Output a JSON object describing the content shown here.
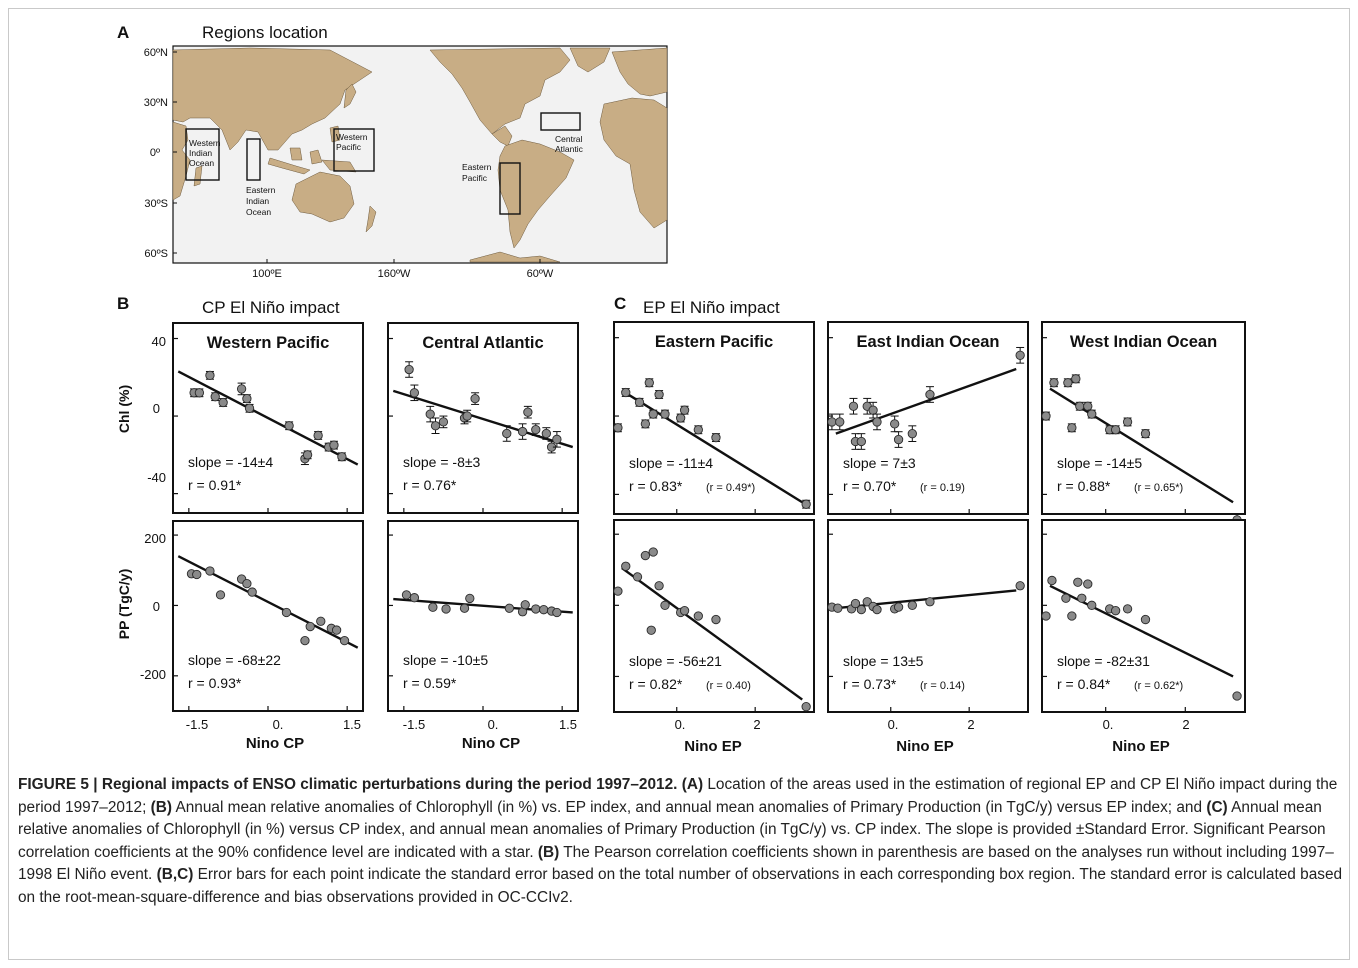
{
  "figure": {
    "panel_a": {
      "letter": "A",
      "title": "Regions location"
    },
    "panel_b": {
      "letter": "B",
      "title": "CP El Niño impact"
    },
    "panel_c": {
      "letter": "C",
      "title": "EP El Niño impact"
    }
  },
  "map": {
    "y_ticks": [
      "60ºN",
      "30ºN",
      "0º",
      "30ºS",
      "60ºS"
    ],
    "x_ticks": [
      "100ºE",
      "160ºW",
      "60ºW"
    ],
    "regions": [
      {
        "lines": [
          "Western",
          "Indian",
          "Ocean"
        ]
      },
      {
        "lines": [
          "Eastern",
          "Indian",
          "Ocean"
        ]
      },
      {
        "lines": [
          "Western",
          "Pacific"
        ]
      },
      {
        "lines": [
          "Eastern",
          "Pacific"
        ]
      },
      {
        "lines": [
          "Central",
          "Atlantic"
        ]
      }
    ],
    "colors": {
      "land": "#c8ad85",
      "ocean": "#f2f2f2",
      "box": "#111111"
    }
  },
  "axes": {
    "chl_label": "Chl (%)",
    "pp_label": "PP (TgC/y)",
    "chl_ticks": [
      "40",
      "0",
      "-40"
    ],
    "pp_ticks": [
      "200",
      "0",
      "-200"
    ],
    "cp_xlabel": "Nino CP",
    "ep_xlabel": "Nino EP",
    "cp_xticks": [
      "-1.5",
      "0.",
      "1.5"
    ],
    "ep_xticks": [
      "0.",
      "2"
    ]
  },
  "chart_data": [
    {
      "type": "scatter",
      "title": "Western Pacific",
      "xlabel": "",
      "ylabel": "Chl (%)",
      "xlim": [
        -1.8,
        1.8
      ],
      "ylim": [
        -50,
        48
      ],
      "slope": "slope = -14±4",
      "r": "r = 0.91*",
      "r_paren": "",
      "regression": [
        [
          -1.7,
          23
        ],
        [
          1.7,
          -25
        ]
      ],
      "x": [
        -1.4,
        -1.3,
        -1.1,
        -1.0,
        -0.85,
        -0.5,
        -0.4,
        -0.35,
        0.4,
        0.7,
        0.75,
        0.95,
        1.15,
        1.25,
        1.4
      ],
      "y": [
        12,
        12,
        21,
        10,
        7,
        14,
        9,
        4,
        -5,
        -22,
        -20,
        -10,
        -16,
        -15,
        -21
      ],
      "err": [
        2,
        2,
        2,
        2,
        2,
        3,
        2,
        2,
        2,
        3,
        2,
        2,
        2,
        2,
        2
      ]
    },
    {
      "type": "scatter",
      "title": "Central Atlantic",
      "xlabel": "",
      "ylabel": "",
      "xlim": [
        -1.8,
        1.8
      ],
      "ylim": [
        -50,
        48
      ],
      "slope": "slope = -8±3",
      "r": "r = 0.76*",
      "r_paren": "",
      "regression": [
        [
          -1.7,
          13
        ],
        [
          1.7,
          -16
        ]
      ],
      "x": [
        -1.4,
        -1.3,
        -1.0,
        -0.9,
        -0.75,
        -0.35,
        -0.3,
        -0.15,
        0.45,
        0.75,
        0.85,
        1.0,
        1.2,
        1.3,
        1.4
      ],
      "y": [
        24,
        12,
        1,
        -5,
        -3,
        -1,
        0,
        9,
        -9,
        -8,
        2,
        -7,
        -9,
        -16,
        -12
      ],
      "err": [
        4,
        4,
        4,
        4,
        3,
        3,
        3,
        3,
        4,
        4,
        3,
        3,
        3,
        3,
        4
      ]
    },
    {
      "type": "scatter",
      "title": "Eastern Pacific",
      "xlabel": "",
      "ylabel": "",
      "xlim": [
        -1.6,
        3.5
      ],
      "ylim": [
        -50,
        48
      ],
      "slope": "slope = -11±4",
      "r": "r = 0.83*",
      "r_paren": "(r = 0.49*)",
      "regression": [
        [
          -1.4,
          13
        ],
        [
          3.2,
          -44
        ]
      ],
      "x": [
        -1.5,
        -1.3,
        -0.95,
        -0.8,
        -0.7,
        -0.6,
        -0.45,
        -0.3,
        0.1,
        0.2,
        0.55,
        1.0,
        3.3
      ],
      "y": [
        -6,
        12,
        7,
        -4,
        17,
        1,
        11,
        1,
        -1,
        3,
        -7,
        -11,
        -45
      ],
      "err": [
        2,
        2,
        2,
        2,
        2,
        2,
        2,
        2,
        2,
        2,
        2,
        2,
        2
      ]
    },
    {
      "type": "scatter",
      "title": "East Indian Ocean",
      "xlabel": "",
      "ylabel": "",
      "xlim": [
        -1.6,
        3.5
      ],
      "ylim": [
        -50,
        48
      ],
      "slope": "slope = 7±3",
      "r": "r = 0.70*",
      "r_paren": "(r = 0.19)",
      "regression": [
        [
          -1.4,
          -9
        ],
        [
          3.2,
          24
        ]
      ],
      "x": [
        -1.5,
        -1.3,
        -0.95,
        -0.9,
        -0.75,
        -0.6,
        -0.45,
        -0.35,
        0.1,
        0.2,
        0.55,
        1.0,
        3.3
      ],
      "y": [
        -3,
        -3,
        5,
        -13,
        -13,
        5,
        3,
        -3,
        -4,
        -12,
        -9,
        11,
        31
      ],
      "err": [
        4,
        4,
        4,
        4,
        4,
        4,
        4,
        4,
        4,
        4,
        4,
        4,
        4
      ]
    },
    {
      "type": "scatter",
      "title": "West Indian Ocean",
      "xlabel": "",
      "ylabel": "",
      "xlim": [
        -1.6,
        3.5
      ],
      "ylim": [
        -50,
        48
      ],
      "slope": "slope = -14±5",
      "r": "r = 0.88*",
      "r_paren": "(r = 0.65*)",
      "regression": [
        [
          -1.4,
          14
        ],
        [
          3.2,
          -44
        ]
      ],
      "x": [
        -1.5,
        -1.3,
        -0.95,
        -0.85,
        -0.75,
        -0.65,
        -0.45,
        -0.35,
        0.1,
        0.25,
        0.55,
        1.0,
        3.3
      ],
      "y": [
        0,
        17,
        17,
        -6,
        19,
        5,
        5,
        1,
        -7,
        -7,
        -3,
        -9,
        -53
      ],
      "err": [
        2,
        2,
        2,
        2,
        2,
        2,
        2,
        2,
        2,
        2,
        2,
        2,
        3
      ]
    },
    {
      "type": "scatter",
      "title": "",
      "xlabel": "Nino CP",
      "ylabel": "PP (TgC/y)",
      "xlim": [
        -1.8,
        1.8
      ],
      "ylim": [
        -300,
        240
      ],
      "slope": "slope = -68±22",
      "r": "r = 0.93*",
      "r_paren": "",
      "regression": [
        [
          -1.7,
          140
        ],
        [
          1.7,
          -120
        ]
      ],
      "x": [
        -1.45,
        -1.35,
        -1.1,
        -0.9,
        -0.5,
        -0.4,
        -0.3,
        0.35,
        0.7,
        0.8,
        1.0,
        1.2,
        1.3,
        1.45
      ],
      "y": [
        90,
        88,
        98,
        30,
        75,
        62,
        38,
        -20,
        -100,
        -60,
        -45,
        -65,
        -70,
        -100
      ]
    },
    {
      "type": "scatter",
      "title": "",
      "xlabel": "Nino CP",
      "ylabel": "",
      "xlim": [
        -1.8,
        1.8
      ],
      "ylim": [
        -300,
        240
      ],
      "slope": "slope = -10±5",
      "r": "r = 0.59*",
      "r_paren": "",
      "regression": [
        [
          -1.7,
          18
        ],
        [
          1.7,
          -20
        ]
      ],
      "x": [
        -1.45,
        -1.3,
        -0.95,
        -0.7,
        -0.35,
        -0.25,
        0.5,
        0.75,
        0.8,
        1.0,
        1.15,
        1.3,
        1.4
      ],
      "y": [
        30,
        22,
        -5,
        -10,
        -8,
        20,
        -8,
        -18,
        2,
        -10,
        -12,
        -16,
        -20
      ]
    },
    {
      "type": "scatter",
      "title": "",
      "xlabel": "Nino EP",
      "ylabel": "",
      "xlim": [
        -1.6,
        3.5
      ],
      "ylim": [
        -300,
        240
      ],
      "slope": "slope = -56±21",
      "r": "r = 0.82*",
      "r_paren": "(r = 0.40)",
      "regression": [
        [
          -1.4,
          105
        ],
        [
          3.2,
          -265
        ]
      ],
      "x": [
        -1.5,
        -1.3,
        -1.0,
        -0.8,
        -0.65,
        -0.6,
        -0.45,
        -0.3,
        0.1,
        0.2,
        0.55,
        1.0,
        3.3
      ],
      "y": [
        40,
        110,
        80,
        140,
        -70,
        150,
        55,
        0,
        -20,
        -15,
        -30,
        -40,
        -285
      ]
    },
    {
      "type": "scatter",
      "title": "",
      "xlabel": "Nino EP",
      "ylabel": "",
      "xlim": [
        -1.6,
        3.5
      ],
      "ylim": [
        -300,
        240
      ],
      "slope": "slope = 13±5",
      "r": "r = 0.73*",
      "r_paren": "(r = 0.14)",
      "regression": [
        [
          -1.4,
          -8
        ],
        [
          3.2,
          42
        ]
      ],
      "x": [
        -1.5,
        -1.35,
        -1.0,
        -0.9,
        -0.75,
        -0.6,
        -0.45,
        -0.35,
        0.1,
        0.2,
        0.55,
        1.0,
        3.3
      ],
      "y": [
        -5,
        -8,
        -10,
        5,
        -12,
        10,
        -3,
        -12,
        -10,
        -5,
        0,
        10,
        55
      ]
    },
    {
      "type": "scatter",
      "title": "",
      "xlabel": "Nino EP",
      "ylabel": "",
      "xlim": [
        -1.6,
        3.5
      ],
      "ylim": [
        -300,
        240
      ],
      "slope": "slope = -82±31",
      "r": "r = 0.84*",
      "r_paren": "(r = 0.62*)",
      "regression": [
        [
          -1.4,
          55
        ],
        [
          3.2,
          -200
        ]
      ],
      "x": [
        -1.5,
        -1.35,
        -1.0,
        -0.85,
        -0.7,
        -0.6,
        -0.45,
        -0.35,
        0.1,
        0.25,
        0.55,
        1.0,
        3.3
      ],
      "y": [
        -30,
        70,
        20,
        -30,
        65,
        20,
        60,
        0,
        -10,
        -15,
        -10,
        -40,
        -255
      ]
    }
  ],
  "caption": {
    "title": "FIGURE 5 | Regional impacts of ENSO climatic perturbations during the period 1997–2012.",
    "t1": "(A)",
    "b1": " Location of the areas used in the estimation of regional EP and CP El Niño impact during the period 1997–2012; ",
    "t2": "(B)",
    "b2": " Annual mean relative anomalies of Chlorophyll (in %) vs. EP index, and annual mean anomalies of Primary Production (in TgC/y) versus EP index; and ",
    "t3": "(C)",
    "b3": " Annual mean relative anomalies of Chlorophyll (in %) versus CP index, and annual mean anomalies of Primary Production (in TgC/y) vs. CP index. The slope is provided ±Standard Error. Significant Pearson correlation coefficients at the 90% confidence level are indicated with a star. ",
    "t4": "(B)",
    "b4": " The Pearson correlation coefficients shown in parenthesis are based on the analyses run without including 1997–1998 El Niño event. ",
    "t5": "(B,C)",
    "b5": " Error bars for each point indicate the standard error based on the total number of observations in each corresponding box region. The standard error is calculated based on the root-mean-square-difference and bias observations provided in OC-CCIv2."
  }
}
